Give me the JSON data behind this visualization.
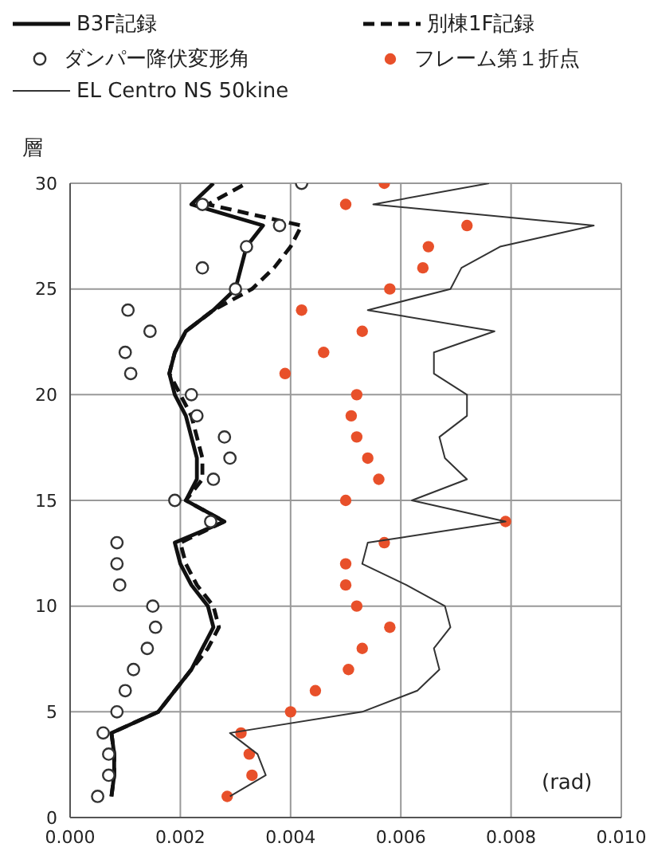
{
  "chart_data": {
    "type": "line",
    "ylabel": "層",
    "xlabel": "(rad)",
    "xlim": [
      0,
      0.01
    ],
    "xticks": [
      {
        "value": 0,
        "label": "0.000"
      },
      {
        "value": 0.002,
        "label": "0.002"
      },
      {
        "value": 0.004,
        "label": "0.004"
      },
      {
        "value": 0.006,
        "label": "0.006"
      },
      {
        "value": 0.008,
        "label": "0.008"
      },
      {
        "value": 0.01,
        "label": "0.010"
      }
    ],
    "ylim": [
      0,
      30
    ],
    "yticks": [
      0,
      5,
      10,
      15,
      20,
      25,
      30
    ],
    "grid": true,
    "legend": "top",
    "series": [
      {
        "name": "B3F記録",
        "line_style": "solid",
        "marker": "none",
        "color": "#111111",
        "x": [
          0.00075,
          0.0008,
          0.0008,
          0.00075,
          0.0016,
          0.0019,
          0.0022,
          0.0024,
          0.0026,
          0.0025,
          0.0022,
          0.002,
          0.0019,
          0.0028,
          0.0021,
          0.0023,
          0.0023,
          0.0022,
          0.0021,
          0.0019,
          0.0018,
          0.0019,
          0.0021,
          0.0026,
          0.003,
          0.0031,
          0.0032,
          0.0035,
          0.0022,
          0.0026
        ],
        "values": [
          1,
          2,
          3,
          4,
          5,
          6,
          7,
          8,
          9,
          10,
          11,
          12,
          13,
          14,
          15,
          16,
          17,
          18,
          19,
          20,
          21,
          22,
          23,
          24,
          25,
          26,
          27,
          28,
          29,
          30
        ]
      },
      {
        "name": "別棟1F記録",
        "line_style": "dashed",
        "marker": "none",
        "color": "#111111",
        "x": [
          0.00075,
          0.0008,
          0.0008,
          0.00075,
          0.0016,
          0.0019,
          0.0022,
          0.0025,
          0.0027,
          0.0026,
          0.0023,
          0.0021,
          0.002,
          0.0028,
          0.0021,
          0.0024,
          0.0024,
          0.0023,
          0.0022,
          0.002,
          0.0018,
          0.0019,
          0.0021,
          0.0026,
          0.0033,
          0.0037,
          0.004,
          0.0042,
          0.0025,
          0.0032
        ],
        "values": [
          1,
          2,
          3,
          4,
          5,
          6,
          7,
          8,
          9,
          10,
          11,
          12,
          13,
          14,
          15,
          16,
          17,
          18,
          19,
          20,
          21,
          22,
          23,
          24,
          25,
          26,
          27,
          28,
          29,
          30
        ]
      },
      {
        "name": "ダンパー降伏変形角",
        "type": "scatter",
        "marker": "circle",
        "color": "#333333",
        "x": [
          0.0005,
          0.0007,
          0.0007,
          0.0006,
          0.00085,
          0.001,
          0.00115,
          0.0014,
          0.00155,
          0.0015,
          0.0009,
          0.00085,
          0.00085,
          0.00255,
          0.0019,
          0.0026,
          0.0029,
          0.0028,
          0.0023,
          0.0022,
          0.0011,
          0.001,
          0.00145,
          0.00105,
          0.003,
          0.0024,
          0.0032,
          0.0038,
          0.0024,
          0.0042
        ],
        "values": [
          1,
          2,
          3,
          4,
          5,
          6,
          7,
          8,
          9,
          10,
          11,
          12,
          13,
          14,
          15,
          16,
          17,
          18,
          19,
          20,
          21,
          22,
          23,
          24,
          25,
          26,
          27,
          28,
          29,
          30
        ]
      },
      {
        "name": "フレーム第１折点",
        "type": "scatter",
        "marker": "circle",
        "color": "#e8502a",
        "x": [
          0.00285,
          0.0033,
          0.00325,
          0.0031,
          0.004,
          0.00445,
          0.00505,
          0.0053,
          0.0058,
          0.0052,
          0.005,
          0.005,
          0.0057,
          0.0079,
          0.005,
          0.0056,
          0.0054,
          0.0052,
          0.0051,
          0.0052,
          0.0039,
          0.0046,
          0.0053,
          0.0042,
          0.0058,
          0.0064,
          0.0065,
          0.0072,
          0.005,
          0.0057
        ],
        "values": [
          1,
          2,
          3,
          4,
          5,
          6,
          7,
          8,
          9,
          10,
          11,
          12,
          13,
          14,
          15,
          16,
          17,
          18,
          19,
          20,
          21,
          22,
          23,
          24,
          25,
          26,
          27,
          28,
          29,
          30
        ]
      },
      {
        "name": "EL Centro NS 50kine",
        "line_style": "solid",
        "marker": "none",
        "color": "#333333",
        "x": [
          0.0029,
          0.00355,
          0.0034,
          0.0029,
          0.0053,
          0.0063,
          0.0067,
          0.0066,
          0.0069,
          0.0068,
          0.0061,
          0.0053,
          0.0054,
          0.0079,
          0.0062,
          0.0072,
          0.0068,
          0.0067,
          0.0072,
          0.0072,
          0.0066,
          0.0066,
          0.0077,
          0.0054,
          0.0069,
          0.0071,
          0.0078,
          0.0095,
          0.0055,
          0.0076
        ],
        "values": [
          1,
          2,
          3,
          4,
          5,
          6,
          7,
          8,
          9,
          10,
          11,
          12,
          13,
          14,
          15,
          16,
          17,
          18,
          19,
          20,
          21,
          22,
          23,
          24,
          25,
          26,
          27,
          28,
          29,
          30
        ]
      }
    ]
  }
}
